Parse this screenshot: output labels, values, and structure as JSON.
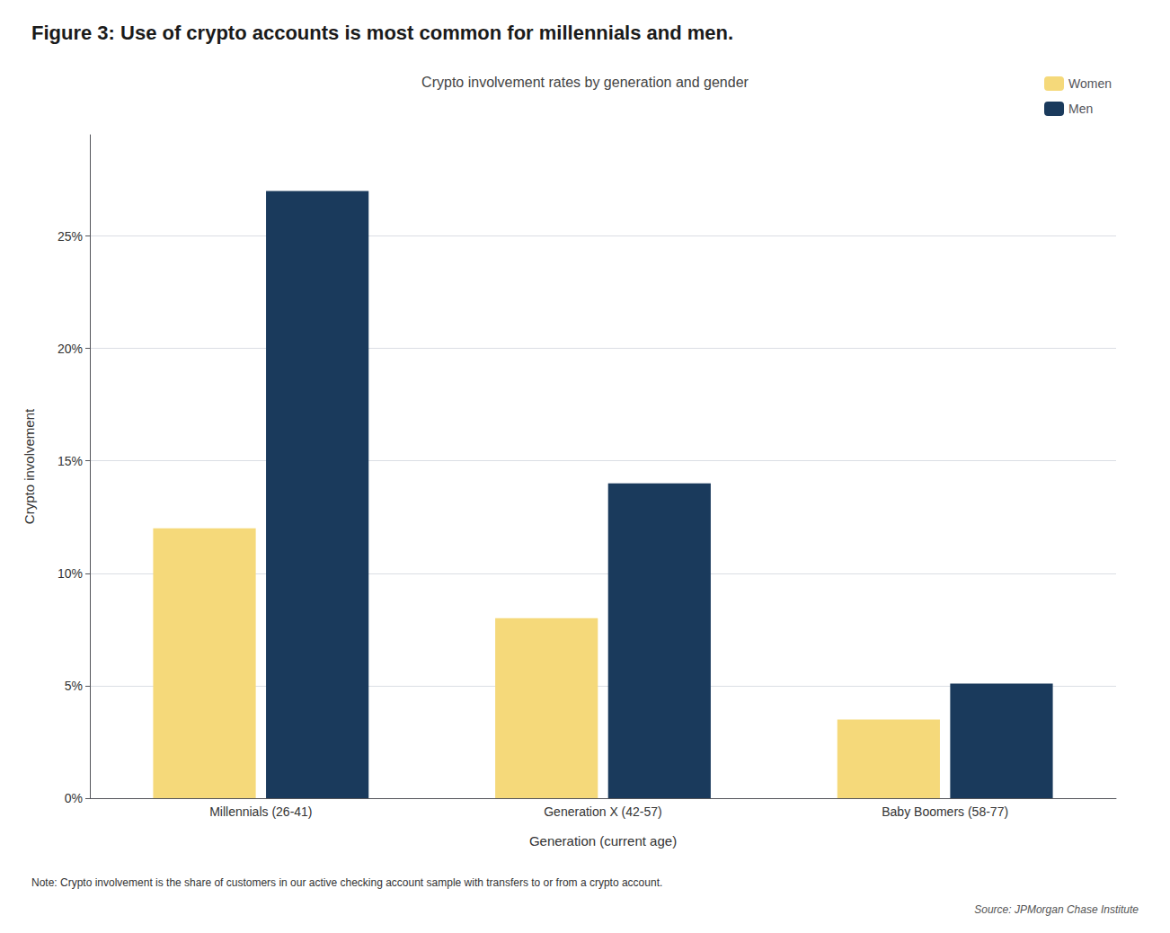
{
  "chart_data": {
    "type": "bar",
    "title": "Figure 3: Use of crypto accounts is most common for millennials and men.",
    "subtitle": "Crypto involvement rates by generation and gender",
    "xlabel": "Generation (current age)",
    "ylabel": "Crypto involvement",
    "categories": [
      "Millennials (26-41)",
      "Generation X (42-57)",
      "Baby Boomers (58-77)"
    ],
    "series": [
      {
        "name": "Women",
        "color": "#F5D97A",
        "values": [
          0.12,
          0.08,
          0.035
        ]
      },
      {
        "name": "Men",
        "color": "#1A3A5C",
        "values": [
          0.27,
          0.14,
          0.051
        ]
      }
    ],
    "ylim": [
      0,
      0.295
    ],
    "yticks": [
      {
        "value": 0.0,
        "label": "0%"
      },
      {
        "value": 0.05,
        "label": "5%"
      },
      {
        "value": 0.1,
        "label": "10%"
      },
      {
        "value": 0.15,
        "label": "15%"
      },
      {
        "value": 0.2,
        "label": "20%"
      },
      {
        "value": 0.25,
        "label": "25%"
      }
    ],
    "grid": true,
    "legend": "upper right",
    "note": "Note: Crypto involvement is the share of customers in our active checking account sample with transfers to or from a crypto account.",
    "source": "Source: JPMorgan Chase Institute"
  }
}
